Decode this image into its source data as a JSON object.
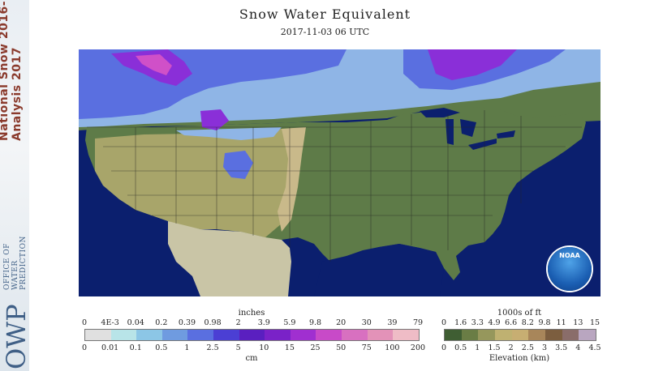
{
  "banner": {
    "line1": "National Snow 2016-",
    "line2": "Analysis 2017",
    "org_abbrev": "OWP",
    "org_line1": "OFFICE OF",
    "org_line2": "WATER",
    "org_line3": "PREDICTION"
  },
  "header": {
    "title": "Snow Water Equivalent",
    "timestamp": "2017-11-03 06 UTC"
  },
  "map": {
    "region": "contiguous-united-states",
    "logo_text": "NOAA",
    "colors": {
      "ocean": "#0b1f6e",
      "lakes": "#0b1f6e",
      "mexico": "#c9c5a6",
      "land_lowland": "#5e7b48",
      "land_mid": "#a8a56a",
      "land_high": "#c9b98a",
      "snow_light": "#8fb5e6",
      "snow_mid": "#5a6fe0",
      "snow_heavy": "#8a2fd8",
      "snow_extreme": "#d050c8",
      "state_borders": "#222222"
    }
  },
  "swe_legend": {
    "top_label": "inches",
    "bottom_label": "cm",
    "inches_ticks": [
      "0",
      "4E-3",
      "0.04",
      "0.2",
      "0.39",
      "0.98",
      "2",
      "3.9",
      "5.9",
      "9.8",
      "20",
      "30",
      "39",
      "79"
    ],
    "cm_ticks": [
      "0",
      "0.01",
      "0.1",
      "0.5",
      "1",
      "2.5",
      "5",
      "10",
      "15",
      "25",
      "50",
      "75",
      "100",
      "200"
    ],
    "colors": [
      "#e0e0e0",
      "#b8e4e8",
      "#8cc6e6",
      "#6f9be0",
      "#5a6fe0",
      "#4b3fd4",
      "#5a1fc0",
      "#7a22c8",
      "#a02fd0",
      "#c84ac8",
      "#d870c0",
      "#e392b8",
      "#efbcc6"
    ]
  },
  "elev_legend": {
    "top_label": "1000s of ft",
    "bottom_label": "Elevation (km)",
    "ft_ticks": [
      "0",
      "1.6",
      "3.3",
      "4.9",
      "6.6",
      "8.2",
      "9.8",
      "11",
      "13",
      "15"
    ],
    "km_ticks": [
      "0",
      "0.5",
      "1",
      "1.5",
      "2",
      "2.5",
      "3",
      "3.5",
      "4",
      "4.5"
    ],
    "colors": [
      "#3f5e33",
      "#6a7d45",
      "#96975c",
      "#bfb171",
      "#c7ae72",
      "#a8865a",
      "#7c5e3f",
      "#8a6d6a",
      "#b9a6c0"
    ]
  }
}
